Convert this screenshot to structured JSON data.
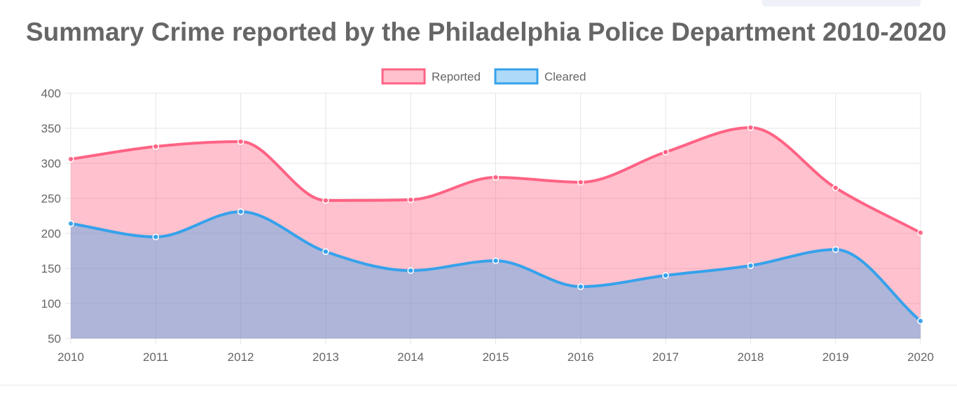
{
  "chart_data": {
    "type": "area",
    "title": "Summary Crime reported by the Philadelphia Police Department 2010-2020",
    "categories": [
      "2010",
      "2011",
      "2012",
      "2013",
      "2014",
      "2015",
      "2016",
      "2017",
      "2018",
      "2019",
      "2020"
    ],
    "series": [
      {
        "name": "Reported",
        "values": [
          306,
          324,
          331,
          247,
          248,
          280,
          273,
          316,
          351,
          265,
          201
        ],
        "line_color": "#ff6384",
        "fill_color": "rgba(255, 99, 132, 0.4)"
      },
      {
        "name": "Cleared",
        "values": [
          214,
          195,
          231,
          174,
          147,
          161,
          124,
          140,
          154,
          177,
          75
        ],
        "line_color": "#36a2eb",
        "fill_color": "rgba(54, 162, 235, 0.4)"
      }
    ],
    "y_ticks": [
      "400",
      "350",
      "300",
      "250",
      "200",
      "150",
      "100",
      "50"
    ],
    "ylim": [
      50,
      400
    ],
    "grid": true,
    "legend_position": "top"
  }
}
